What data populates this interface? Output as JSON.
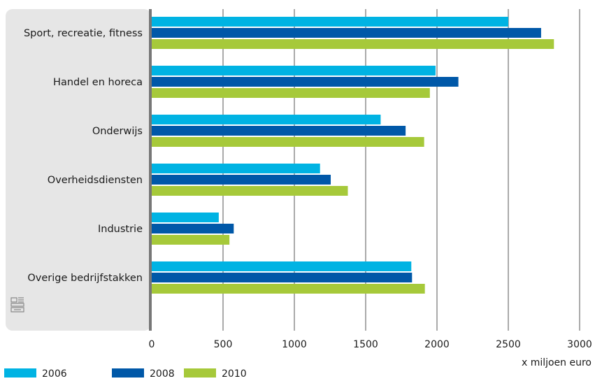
{
  "chart_data": {
    "type": "bar",
    "orientation": "horizontal",
    "categories": [
      "Sport, recreatie, fitness",
      "Handel en horeca",
      "Onderwijs",
      "Overheidsdiensten",
      "Industrie",
      "Overige bedrijfstakken"
    ],
    "series": [
      {
        "name": "2006",
        "color": "#00b3e3",
        "values": [
          2500,
          1990,
          1605,
          1180,
          470,
          1820
        ]
      },
      {
        "name": "2008",
        "color": "#0058a8",
        "values": [
          2730,
          2150,
          1780,
          1255,
          575,
          1825
        ]
      },
      {
        "name": "2010",
        "color": "#a6c93a",
        "values": [
          2820,
          1950,
          1910,
          1375,
          545,
          1915
        ]
      }
    ],
    "xlim": [
      0,
      3000
    ],
    "xticks": [
      "0",
      "500",
      "1000",
      "1500",
      "2000",
      "2500",
      "3000"
    ],
    "unit_label": "x miljoen euro",
    "grid": true,
    "legend_position": "bottom-left",
    "logo_icon": "cbs-logo-icon",
    "colors": {
      "category_band": "#e6e6e6",
      "axis": "#777777",
      "gridline": "#555555"
    }
  }
}
